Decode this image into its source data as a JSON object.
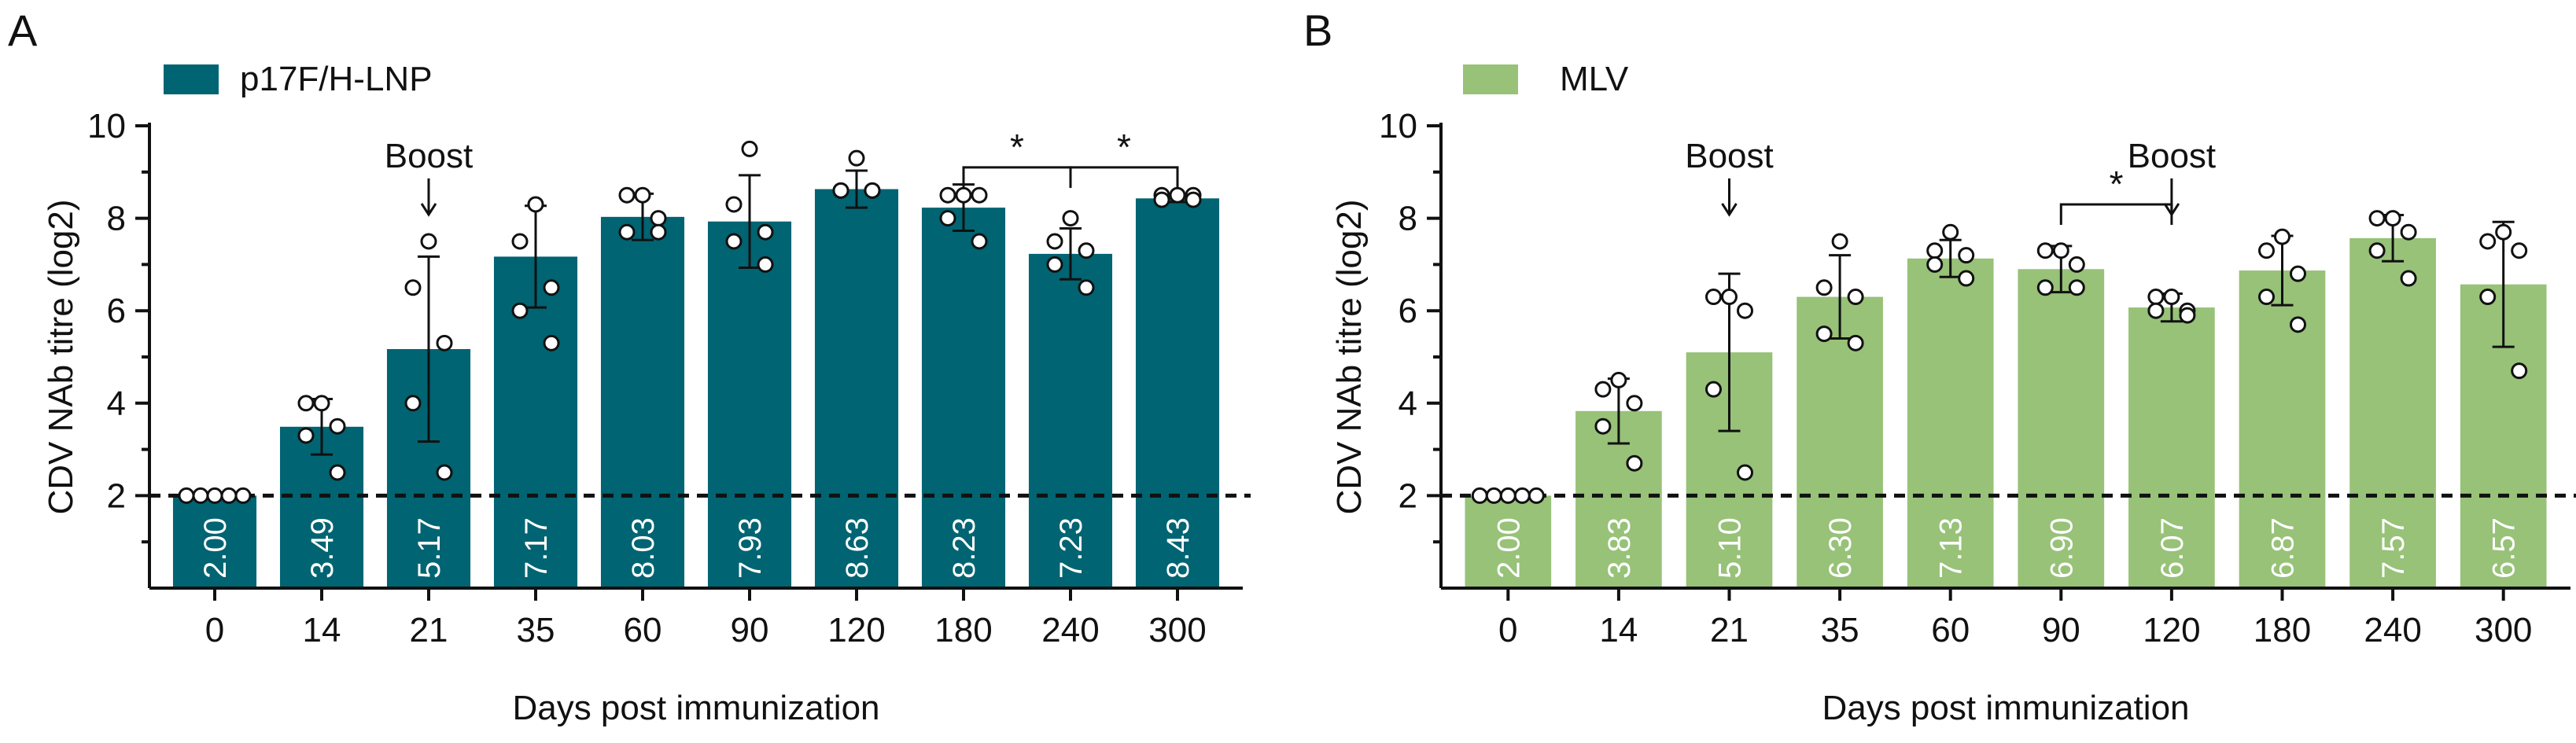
{
  "figure": {
    "panels": [
      "A",
      "B"
    ],
    "xlabel": "Days post immunization",
    "ylabel": "CDV NAb titre (log2)"
  },
  "chart_data": [
    {
      "type": "bar",
      "panel_label": "A",
      "legend": "p17F/H-LNP",
      "bar_color": "#006472",
      "value_label_color": "#ffffff",
      "xlabel": "Days post immunization",
      "ylabel": "CDV NAb titre (log2)",
      "ylim": [
        0,
        10
      ],
      "y_ticks": [
        2,
        4,
        6,
        8,
        10
      ],
      "y_minor_ticks": [
        1,
        3,
        5,
        7,
        9
      ],
      "reference_line": 2,
      "categories": [
        "0",
        "14",
        "21",
        "35",
        "60",
        "90",
        "120",
        "180",
        "240",
        "300"
      ],
      "values": [
        2.0,
        3.49,
        5.17,
        7.17,
        8.03,
        7.93,
        8.63,
        8.23,
        7.23,
        8.43
      ],
      "value_labels": [
        "2.00",
        "3.49",
        "5.17",
        "7.17",
        "8.03",
        "7.93",
        "8.63",
        "8.23",
        "7.23",
        "8.43"
      ],
      "error": [
        0,
        0.6,
        2.0,
        1.1,
        0.5,
        1.0,
        0.4,
        0.5,
        0.55,
        0.08
      ],
      "points": [
        [
          2,
          2,
          2,
          2,
          2
        ],
        [
          4.0,
          4.0,
          3.5,
          3.3,
          2.5
        ],
        [
          7.5,
          6.5,
          5.3,
          4.0,
          2.5
        ],
        [
          8.3,
          7.5,
          6.5,
          6.0,
          5.3
        ],
        [
          8.5,
          8.5,
          8.0,
          7.7,
          7.7
        ],
        [
          9.5,
          8.3,
          7.7,
          7.5,
          7.0
        ],
        [
          9.3,
          8.6,
          8.6,
          8.6,
          8.6
        ],
        [
          8.5,
          8.5,
          8.5,
          8.0,
          7.5
        ],
        [
          8.0,
          7.5,
          7.3,
          7.0,
          6.5
        ],
        [
          8.5,
          8.5,
          8.5,
          8.4,
          8.4
        ]
      ],
      "annotations": [
        {
          "text": "Boost",
          "category": "21",
          "y": 9.1
        }
      ],
      "significance": [
        {
          "from": "180",
          "to": "240",
          "label": "*",
          "y": 9.1
        },
        {
          "from": "240",
          "to": "300",
          "label": "*",
          "y": 9.1
        }
      ]
    },
    {
      "type": "bar",
      "panel_label": "B",
      "legend": "MLV",
      "bar_color": "#97c278",
      "value_label_color": "#ffffff",
      "xlabel": "Days post immunization",
      "ylabel": "CDV NAb titre (log2)",
      "ylim": [
        0,
        10
      ],
      "y_ticks": [
        2,
        4,
        6,
        8,
        10
      ],
      "y_minor_ticks": [
        1,
        3,
        5,
        7,
        9
      ],
      "reference_line": 2,
      "categories": [
        "0",
        "14",
        "21",
        "35",
        "60",
        "90",
        "120",
        "180",
        "240",
        "300"
      ],
      "values": [
        2.0,
        3.83,
        5.1,
        6.3,
        7.13,
        6.9,
        6.07,
        6.87,
        7.57,
        6.57
      ],
      "value_labels": [
        "2.00",
        "3.83",
        "5.10",
        "6.30",
        "7.13",
        "6.90",
        "6.07",
        "6.87",
        "7.57",
        "6.57"
      ],
      "error": [
        0,
        0.7,
        1.7,
        0.9,
        0.4,
        0.5,
        0.3,
        0.75,
        0.5,
        1.35
      ],
      "points": [
        [
          2,
          2,
          2,
          2,
          2
        ],
        [
          4.5,
          4.3,
          4.0,
          3.5,
          2.7
        ],
        [
          6.3,
          6.3,
          6.0,
          4.3,
          2.5
        ],
        [
          7.5,
          6.5,
          6.3,
          5.5,
          5.3
        ],
        [
          7.7,
          7.3,
          7.2,
          7.0,
          6.7
        ],
        [
          7.3,
          7.3,
          7.0,
          6.5,
          6.5
        ],
        [
          6.3,
          6.3,
          6.0,
          6.0,
          5.9
        ],
        [
          7.6,
          7.3,
          6.8,
          6.3,
          5.7
        ],
        [
          8.0,
          8.0,
          7.7,
          7.3,
          6.7
        ],
        [
          7.7,
          7.5,
          7.3,
          6.3,
          4.7
        ]
      ],
      "annotations": [
        {
          "text": "Boost",
          "category": "21",
          "y": 9.1
        },
        {
          "text": "Boost",
          "category": "120",
          "y": 9.1
        }
      ],
      "significance": [
        {
          "from": "90",
          "to": "120",
          "label": "*",
          "y": 8.3
        }
      ]
    }
  ]
}
